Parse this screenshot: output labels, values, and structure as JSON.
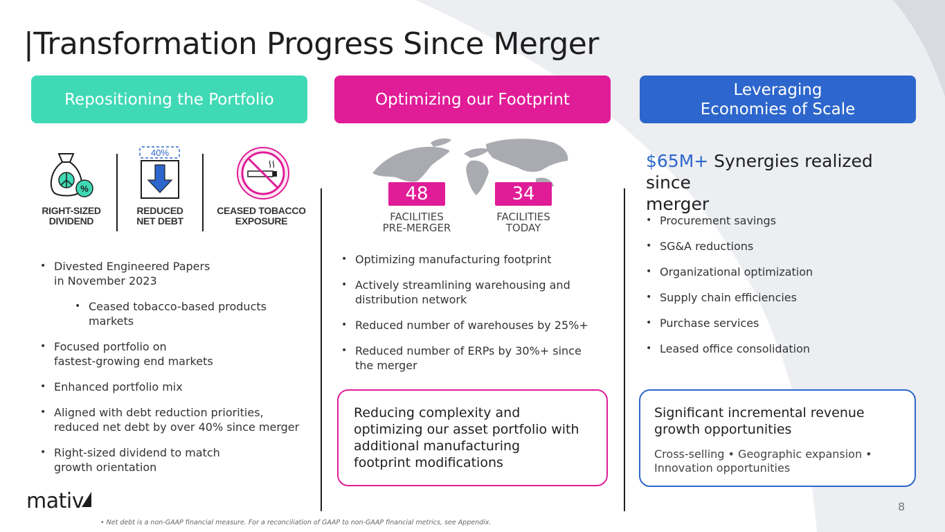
{
  "title": "Transformation Progress Since Merger",
  "columns": {
    "portfolio": {
      "header": "Repositioning the Portfolio",
      "icons": [
        {
          "icon": "money-bag-percent-icon",
          "label_line1": "RIGHT-SIZED",
          "label_line2": "DIVIDEND"
        },
        {
          "icon": "down-arrow-icon",
          "badge": "40%",
          "label_line1": "REDUCED",
          "label_line2": "NET DEBT"
        },
        {
          "icon": "no-smoking-icon",
          "label_line1": "CEASED TOBACCO",
          "label_line2": "EXPOSURE"
        }
      ],
      "bullets": [
        {
          "line1": "Divested Engineered Papers",
          "line2": "in November 2023"
        },
        {
          "line1": "Ceased tobacco-based products",
          "line2": "markets"
        },
        {
          "line1": "Focused portfolio on",
          "line2": "fastest-growing end markets"
        },
        {
          "line1": "Enhanced portfolio mix",
          "line2": ""
        },
        {
          "line1": "Aligned with debt reduction priorities,",
          "line2": "reduced net debt by over 40% since merger"
        },
        {
          "line1": "Right-sized dividend to match",
          "line2": "growth orientation"
        }
      ]
    },
    "footprint": {
      "header": "Optimizing our Footprint",
      "facilities_pre": {
        "value": "48",
        "label_line1": "FACILITIES",
        "label_line2": "PRE-MERGER"
      },
      "facilities_today": {
        "value": "34",
        "label_line1": "FACILITIES",
        "label_line2": "TODAY"
      },
      "bullets": [
        {
          "line1": "Optimizing manufacturing footprint",
          "line2": ""
        },
        {
          "line1": "Actively streamlining warehousing and",
          "line2": "distribution network"
        },
        {
          "line1": "Reduced number of warehouses by 25%+",
          "line2": ""
        },
        {
          "line1": "Reduced number of ERPs by 30%+ since",
          "line2": "the merger"
        }
      ],
      "callout": {
        "line1": "Reducing complexity and",
        "line2": "optimizing our asset portfolio with",
        "line3": "additional manufacturing",
        "line4": "footprint modifications"
      }
    },
    "scale": {
      "header_line1": "Leveraging",
      "header_line2": "Economies of Scale",
      "synergy_amount": "$65M+",
      "synergy_text_line1": " Synergies realized since",
      "synergy_text_line2": "merger",
      "bullets": [
        "Procurement savings",
        "SG&A reductions",
        "Organizational optimization",
        "Supply chain efficiencies",
        "Purchase services",
        "Leased office consolidation"
      ],
      "callout": {
        "head_line1": "Significant incremental revenue",
        "head_line2": "growth opportunities",
        "sub_line1": "Cross-selling • Geographic expansion •",
        "sub_line2": "Innovation opportunities"
      }
    }
  },
  "logo": "mativ",
  "page_number": "8",
  "footnote": "•   Net debt is a non-GAAP financial measure. For a reconciliation of GAAP to non-GAAP financial metrics, see Appendix.",
  "colors": {
    "teal": "#3fd9b5",
    "magenta": "#e01c97",
    "blue": "#2d66cc",
    "text": "#1e1e1e"
  }
}
